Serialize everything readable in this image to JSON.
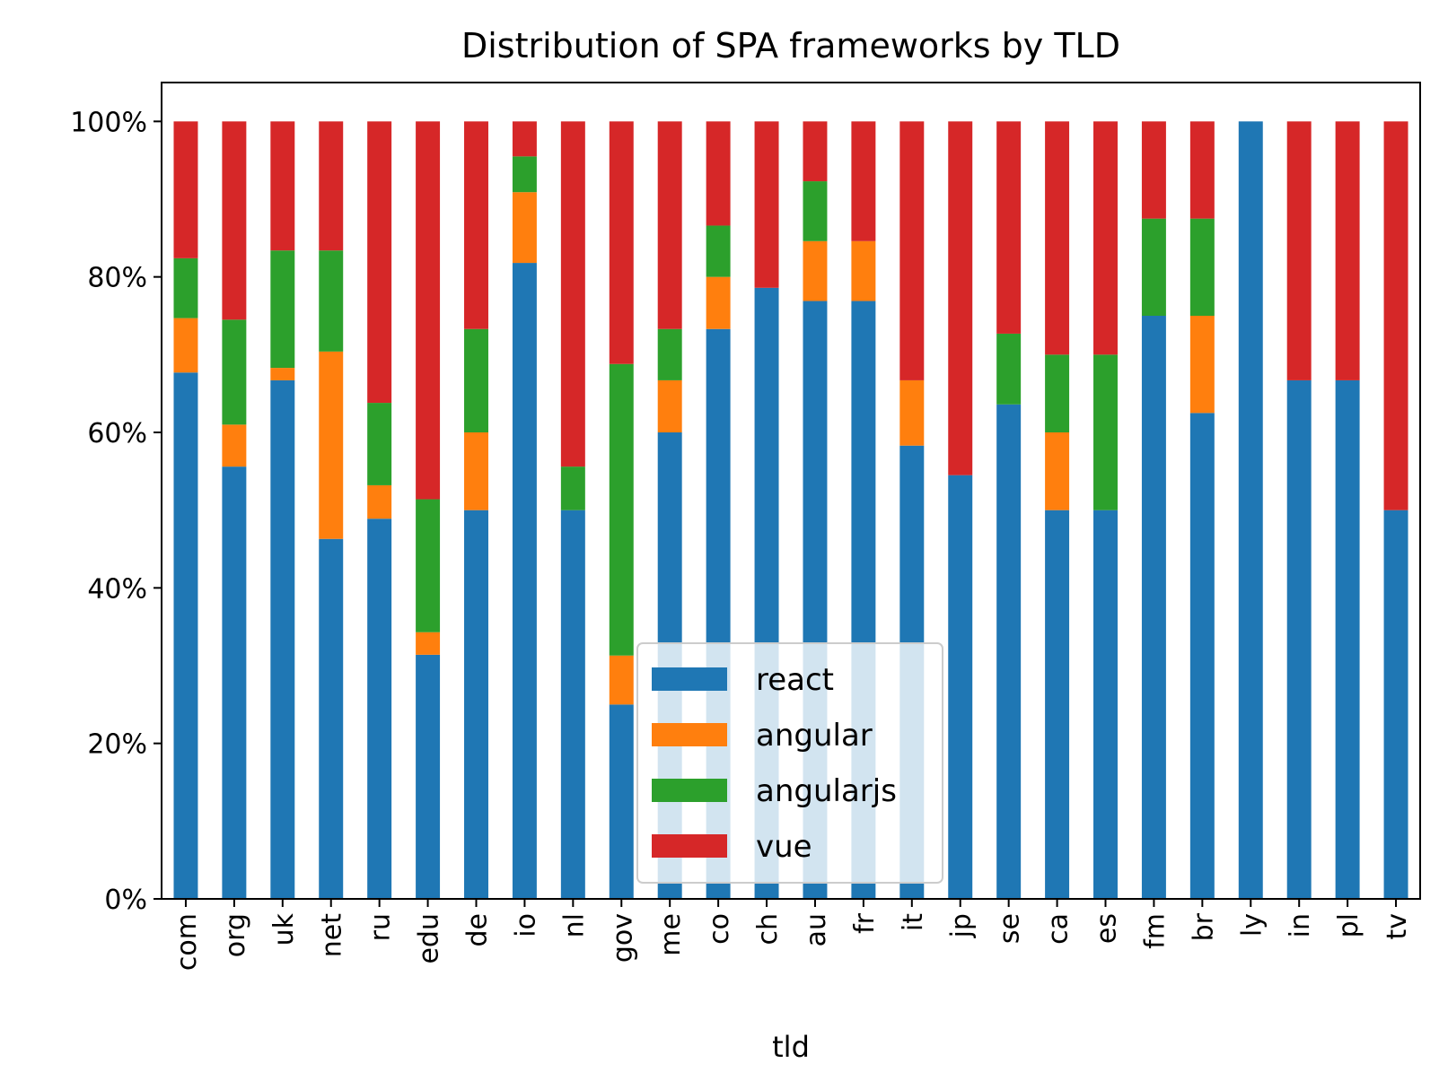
{
  "chart_data": {
    "type": "bar",
    "stacked": true,
    "title": "Distribution of SPA frameworks by TLD",
    "xlabel": "tld",
    "ylabel": "",
    "ylim": [
      0,
      1.05
    ],
    "y_ticks": [
      0,
      0.2,
      0.4,
      0.6,
      0.8,
      1.0
    ],
    "y_tick_labels": [
      "0%",
      "20%",
      "40%",
      "60%",
      "80%",
      "100%"
    ],
    "categories": [
      "com",
      "org",
      "uk",
      "net",
      "ru",
      "edu",
      "de",
      "io",
      "nl",
      "gov",
      "me",
      "co",
      "ch",
      "au",
      "fr",
      "it",
      "jp",
      "se",
      "ca",
      "es",
      "fm",
      "br",
      "ly",
      "in",
      "pl",
      "tv"
    ],
    "series": [
      {
        "name": "react",
        "color": "#1f77b4",
        "values": [
          0.677,
          0.556,
          0.667,
          0.463,
          0.489,
          0.314,
          0.5,
          0.818,
          0.5,
          0.25,
          0.6,
          0.733,
          0.786,
          0.769,
          0.769,
          0.583,
          0.545,
          0.636,
          0.5,
          0.5,
          0.75,
          0.625,
          1.0,
          0.667,
          0.667,
          0.5
        ]
      },
      {
        "name": "angular",
        "color": "#ff7f0e",
        "values": [
          0.07,
          0.054,
          0.016,
          0.241,
          0.043,
          0.029,
          0.1,
          0.091,
          0.0,
          0.063,
          0.067,
          0.067,
          0.0,
          0.077,
          0.077,
          0.084,
          0.0,
          0.0,
          0.1,
          0.0,
          0.0,
          0.125,
          0.0,
          0.0,
          0.0,
          0.0
        ]
      },
      {
        "name": "angularjs",
        "color": "#2ca02c",
        "values": [
          0.077,
          0.135,
          0.151,
          0.13,
          0.106,
          0.171,
          0.133,
          0.046,
          0.056,
          0.375,
          0.066,
          0.066,
          0.0,
          0.077,
          0.0,
          0.0,
          0.0,
          0.091,
          0.1,
          0.2,
          0.125,
          0.125,
          0.0,
          0.0,
          0.0,
          0.0
        ]
      },
      {
        "name": "vue",
        "color": "#d62728",
        "values": [
          0.176,
          0.255,
          0.166,
          0.166,
          0.362,
          0.486,
          0.267,
          0.045,
          0.444,
          0.312,
          0.267,
          0.134,
          0.214,
          0.077,
          0.154,
          0.333,
          0.455,
          0.273,
          0.3,
          0.3,
          0.125,
          0.125,
          0.0,
          0.333,
          0.333,
          0.5
        ]
      }
    ],
    "legend": {
      "placement": "lower-center"
    },
    "grid": false
  }
}
